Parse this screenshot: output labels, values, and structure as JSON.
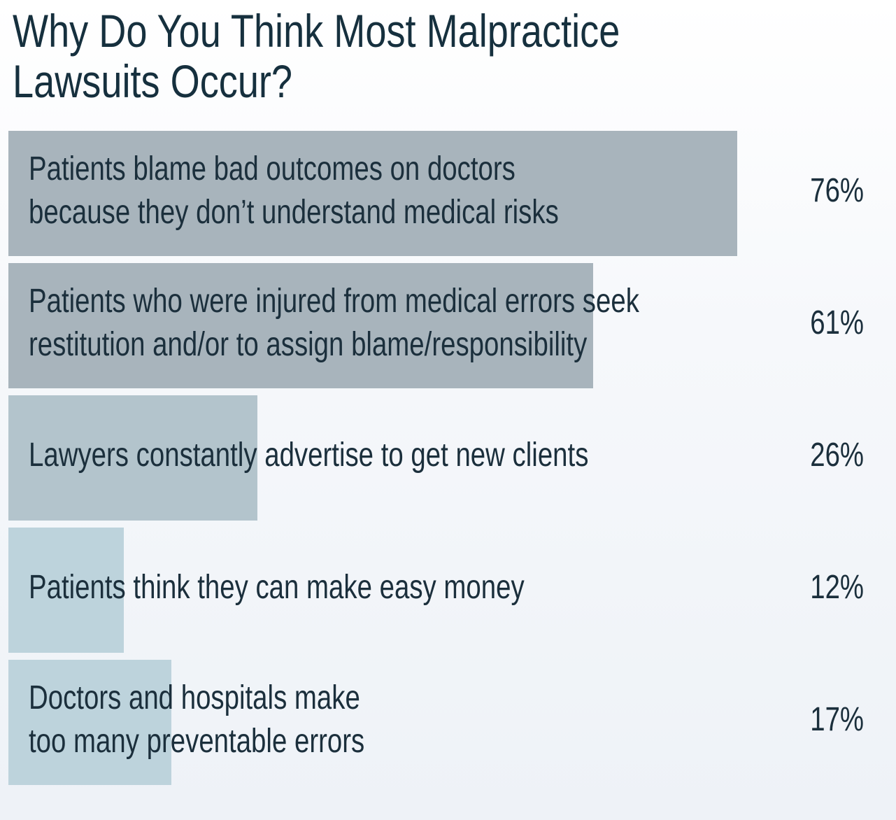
{
  "chart_data": {
    "type": "bar",
    "orientation": "horizontal",
    "title": "Why Do You Think Most Malpractice\nLawsuits Occur?",
    "categories": [
      "Patients blame bad outcomes on doctors\nbecause they don’t understand medical risks",
      "Patients who were injured from medical errors seek\nrestitution and/or to assign blame/responsibility",
      "Lawyers constantly advertise to get new clients",
      "Patients think they can make easy money",
      "Doctors and hospitals make\ntoo many preventable errors"
    ],
    "values": [
      76,
      61,
      26,
      12,
      17
    ],
    "value_labels": [
      "76%",
      "61%",
      "26%",
      "12%",
      "17%"
    ],
    "colors": [
      "#a8b4bc",
      "#a8b4bc",
      "#b3c4cc",
      "#bdd3dc",
      "#bdd3dc"
    ]
  }
}
